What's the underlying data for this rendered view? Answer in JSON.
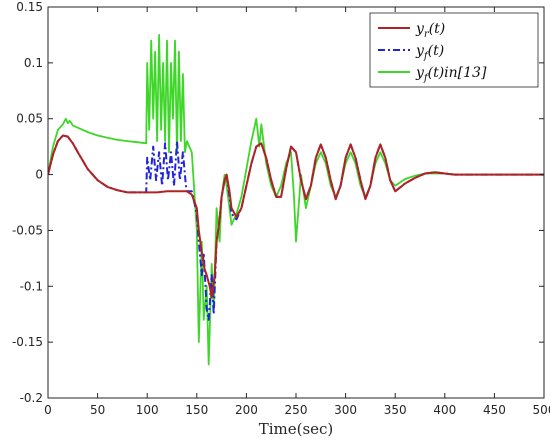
{
  "chart_data": {
    "type": "line",
    "title": "",
    "xlabel": "Time(sec)",
    "ylabel": "",
    "xlim": [
      0,
      500
    ],
    "ylim": [
      -0.2,
      0.15
    ],
    "x_ticks": [
      0,
      50,
      100,
      150,
      200,
      250,
      300,
      350,
      400,
      450,
      500
    ],
    "x_tick_labels": [
      "0",
      "50",
      "100",
      "150",
      "200",
      "250",
      "300",
      "350",
      "400",
      "450",
      "500"
    ],
    "y_ticks": [
      -0.2,
      -0.15,
      -0.1,
      -0.05,
      0,
      0.05,
      0.1,
      0.15
    ],
    "y_tick_labels": [
      "-0.2",
      "-0.15",
      "-0.1",
      "-0.05",
      "0",
      "0.05",
      "0.1",
      "0.15"
    ],
    "grid": false,
    "legend_position": "top-right",
    "series": [
      {
        "name": "y_r(t)",
        "color": "#b22222",
        "style": "solid",
        "x": [
          0,
          5,
          10,
          15,
          20,
          25,
          30,
          40,
          50,
          60,
          70,
          80,
          90,
          100,
          110,
          120,
          130,
          140,
          145,
          150,
          152,
          155,
          158,
          160,
          163,
          165,
          168,
          170,
          173,
          175,
          178,
          180,
          183,
          185,
          190,
          195,
          200,
          205,
          210,
          215,
          220,
          225,
          230,
          235,
          240,
          245,
          250,
          255,
          260,
          265,
          270,
          275,
          280,
          285,
          290,
          295,
          300,
          305,
          310,
          315,
          320,
          325,
          330,
          335,
          340,
          345,
          350,
          360,
          370,
          380,
          390,
          400,
          410,
          420,
          440,
          460,
          480,
          500
        ],
        "y": [
          0,
          0.018,
          0.03,
          0.035,
          0.034,
          0.028,
          0.02,
          0.005,
          -0.005,
          -0.011,
          -0.014,
          -0.016,
          -0.016,
          -0.016,
          -0.016,
          -0.015,
          -0.015,
          -0.015,
          -0.018,
          -0.03,
          -0.05,
          -0.07,
          -0.085,
          -0.09,
          -0.1,
          -0.11,
          -0.09,
          -0.06,
          -0.04,
          -0.02,
          -0.005,
          0,
          -0.015,
          -0.03,
          -0.038,
          -0.03,
          -0.01,
          0.01,
          0.025,
          0.028,
          0.015,
          -0.005,
          -0.02,
          -0.02,
          0.005,
          0.025,
          0.02,
          -0.005,
          -0.022,
          -0.01,
          0.015,
          0.027,
          0.015,
          -0.005,
          -0.022,
          -0.01,
          0.015,
          0.027,
          0.015,
          -0.005,
          -0.022,
          -0.01,
          0.015,
          0.027,
          0.015,
          -0.005,
          -0.015,
          -0.008,
          -0.003,
          0.001,
          0.002,
          0.001,
          0,
          0,
          0,
          0,
          0,
          0
        ]
      },
      {
        "name": "y_f(t)",
        "color": "#1f24d6",
        "style": "dash-dot",
        "x": [
          0,
          5,
          10,
          15,
          20,
          25,
          30,
          40,
          50,
          60,
          70,
          80,
          90,
          99,
          100,
          103,
          106,
          109,
          112,
          115,
          118,
          121,
          124,
          127,
          130,
          133,
          136,
          139,
          140,
          145,
          150,
          152,
          155,
          157,
          160,
          162,
          165,
          167,
          170,
          173,
          175,
          178,
          180,
          183,
          185,
          190,
          195,
          200,
          205,
          210,
          215,
          220,
          225,
          230,
          235,
          240,
          245,
          250,
          255,
          260,
          265,
          270,
          275,
          280,
          285,
          290,
          295,
          300,
          305,
          310,
          315,
          320,
          325,
          330,
          335,
          340,
          345,
          350,
          360,
          370,
          380,
          390,
          400,
          410,
          420,
          440,
          460,
          480,
          500
        ],
        "y": [
          0,
          0.018,
          0.03,
          0.035,
          0.034,
          0.028,
          0.02,
          0.005,
          -0.005,
          -0.011,
          -0.014,
          -0.016,
          -0.016,
          -0.016,
          0.015,
          -0.005,
          0.025,
          -0.005,
          0.02,
          -0.01,
          0.028,
          -0.005,
          0.02,
          -0.01,
          0.03,
          -0.005,
          0.02,
          -0.01,
          -0.015,
          -0.015,
          -0.035,
          -0.06,
          -0.09,
          -0.07,
          -0.12,
          -0.13,
          -0.09,
          -0.125,
          -0.06,
          -0.04,
          -0.02,
          -0.005,
          0,
          -0.02,
          -0.035,
          -0.04,
          -0.03,
          -0.01,
          0.01,
          0.025,
          0.028,
          0.015,
          -0.005,
          -0.02,
          -0.02,
          0.005,
          0.025,
          0.02,
          -0.005,
          -0.022,
          -0.01,
          0.015,
          0.027,
          0.015,
          -0.005,
          -0.022,
          -0.01,
          0.015,
          0.027,
          0.015,
          -0.005,
          -0.022,
          -0.01,
          0.015,
          0.027,
          0.015,
          -0.005,
          -0.015,
          -0.008,
          -0.003,
          0.001,
          0.002,
          0.001,
          0,
          0,
          0,
          0,
          0,
          0
        ]
      },
      {
        "name": "y_f(t)in[13]",
        "color": "#3fd62a",
        "style": "solid",
        "x": [
          0,
          5,
          10,
          15,
          18,
          20,
          22,
          25,
          30,
          40,
          50,
          60,
          70,
          80,
          90,
          99,
          100,
          102,
          104,
          106,
          108,
          110,
          112,
          114,
          116,
          118,
          120,
          122,
          124,
          126,
          128,
          130,
          132,
          134,
          136,
          138,
          140,
          145,
          150,
          152,
          155,
          157,
          160,
          162,
          165,
          167,
          170,
          173,
          175,
          178,
          180,
          183,
          185,
          190,
          195,
          200,
          205,
          210,
          213,
          215,
          220,
          225,
          230,
          235,
          240,
          245,
          248,
          250,
          255,
          260,
          265,
          270,
          275,
          280,
          285,
          290,
          295,
          300,
          305,
          310,
          315,
          320,
          325,
          330,
          335,
          340,
          345,
          350,
          360,
          370,
          380,
          390,
          400,
          410,
          420,
          440,
          460,
          480,
          500
        ],
        "y": [
          0,
          0.025,
          0.04,
          0.045,
          0.05,
          0.046,
          0.048,
          0.044,
          0.042,
          0.038,
          0.035,
          0.033,
          0.031,
          0.03,
          0.029,
          0.028,
          0.1,
          0.04,
          0.12,
          0.05,
          0.11,
          0.03,
          0.125,
          0.04,
          0.1,
          0.03,
          0.12,
          0.02,
          0.1,
          0.05,
          0.12,
          0.02,
          0.11,
          0.03,
          0.09,
          0.02,
          0.03,
          0.02,
          -0.05,
          -0.15,
          -0.06,
          -0.13,
          -0.1,
          -0.17,
          -0.08,
          -0.12,
          -0.03,
          -0.06,
          -0.02,
          0,
          -0.01,
          -0.03,
          -0.045,
          -0.035,
          -0.02,
          0.005,
          0.03,
          0.05,
          0.025,
          0.045,
          0.01,
          -0.01,
          -0.02,
          -0.01,
          0.01,
          0.02,
          -0.02,
          -0.06,
          0,
          -0.03,
          -0.01,
          0.01,
          0.02,
          0.01,
          -0.01,
          -0.02,
          -0.01,
          0.01,
          0.02,
          0.01,
          -0.01,
          -0.02,
          -0.01,
          0.01,
          0.02,
          0.01,
          -0.005,
          -0.01,
          -0.004,
          -0.001,
          0.001,
          0.001,
          0.001,
          0,
          0,
          0,
          0,
          0,
          0
        ]
      }
    ]
  }
}
